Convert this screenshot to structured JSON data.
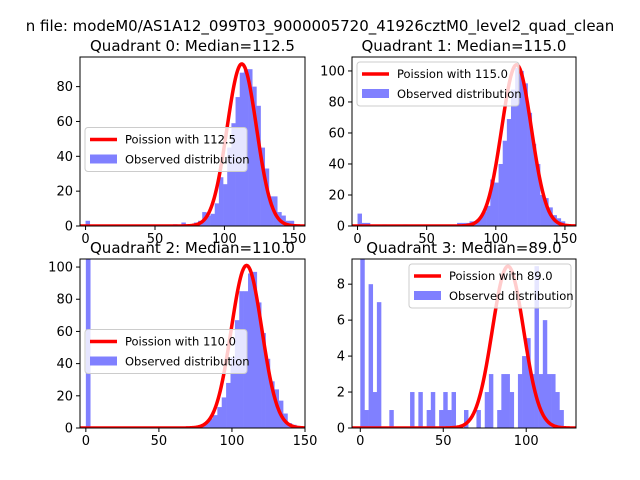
{
  "suptitle": "n file: modeM0/AS1A12_099T03_9000005720_41926cztM0_level2_quad_clean",
  "colors": {
    "poisson": "#ff0000",
    "observed": "#8080ff"
  },
  "legend_labels": {
    "poisson_prefix": "Poission with ",
    "observed": "Observed distribution"
  },
  "chart_data": [
    {
      "type": "bar",
      "title": "Quadrant 0: Median=112.5",
      "xlim": [
        -4,
        158
      ],
      "ylim": [
        0,
        97
      ],
      "xticks": [
        0,
        50,
        100,
        150
      ],
      "yticks": [
        0,
        20,
        40,
        60,
        80
      ],
      "legend_loc": "center-left",
      "poisson_label": "112.5",
      "poisson_mean": 112.5,
      "poisson_peak": 93,
      "bin_width": 3,
      "bins": [
        [
          0,
          3
        ],
        [
          63,
          1
        ],
        [
          69,
          2
        ],
        [
          72,
          1
        ],
        [
          75,
          1
        ],
        [
          78,
          2
        ],
        [
          81,
          3
        ],
        [
          84,
          8
        ],
        [
          87,
          6
        ],
        [
          90,
          7
        ],
        [
          93,
          13
        ],
        [
          96,
          28
        ],
        [
          99,
          24
        ],
        [
          102,
          45
        ],
        [
          105,
          59
        ],
        [
          108,
          74
        ],
        [
          111,
          88
        ],
        [
          114,
          90
        ],
        [
          117,
          90
        ],
        [
          120,
          80
        ],
        [
          123,
          69
        ],
        [
          126,
          45
        ],
        [
          129,
          33
        ],
        [
          132,
          17
        ],
        [
          135,
          17
        ],
        [
          138,
          8
        ],
        [
          141,
          6
        ],
        [
          144,
          3
        ],
        [
          147,
          3
        ],
        [
          150,
          1
        ]
      ]
    },
    {
      "type": "bar",
      "title": "Quadrant 1: Median=115.0",
      "xlim": [
        -4,
        158
      ],
      "ylim": [
        0,
        109
      ],
      "xticks": [
        0,
        50,
        100,
        150
      ],
      "yticks": [
        0,
        20,
        40,
        60,
        80,
        100
      ],
      "legend_loc": "top-left",
      "poisson_label": "115.0",
      "poisson_mean": 115,
      "poisson_peak": 104,
      "bin_width": 3,
      "bins": [
        [
          0,
          8
        ],
        [
          3,
          2
        ],
        [
          6,
          2
        ],
        [
          18,
          1
        ],
        [
          33,
          1
        ],
        [
          72,
          2
        ],
        [
          75,
          2
        ],
        [
          78,
          2
        ],
        [
          81,
          3
        ],
        [
          84,
          3
        ],
        [
          87,
          5
        ],
        [
          90,
          9
        ],
        [
          93,
          13
        ],
        [
          96,
          30
        ],
        [
          99,
          28
        ],
        [
          102,
          40
        ],
        [
          105,
          55
        ],
        [
          108,
          69
        ],
        [
          111,
          88
        ],
        [
          114,
          102
        ],
        [
          117,
          100
        ],
        [
          120,
          92
        ],
        [
          123,
          73
        ],
        [
          126,
          53
        ],
        [
          129,
          40
        ],
        [
          132,
          20
        ],
        [
          135,
          18
        ],
        [
          138,
          12
        ],
        [
          141,
          7
        ],
        [
          144,
          5
        ],
        [
          147,
          3
        ],
        [
          150,
          1
        ]
      ]
    },
    {
      "type": "bar",
      "title": "Quadrant 2: Median=110.0",
      "xlim": [
        -4,
        150
      ],
      "ylim": [
        0,
        105
      ],
      "xticks": [
        0,
        50,
        100,
        150
      ],
      "yticks": [
        0,
        20,
        40,
        60,
        80,
        100
      ],
      "legend_loc": "center-left",
      "poisson_label": "110.0",
      "poisson_mean": 110,
      "poisson_peak": 101,
      "bin_width": 3,
      "bins": [
        [
          0,
          105
        ],
        [
          68,
          1
        ],
        [
          72,
          1
        ],
        [
          78,
          2
        ],
        [
          81,
          3
        ],
        [
          84,
          6
        ],
        [
          87,
          8
        ],
        [
          90,
          13
        ],
        [
          93,
          19
        ],
        [
          96,
          28
        ],
        [
          99,
          44
        ],
        [
          102,
          67
        ],
        [
          105,
          85
        ],
        [
          108,
          85
        ],
        [
          111,
          96
        ],
        [
          114,
          97
        ],
        [
          117,
          78
        ],
        [
          120,
          59
        ],
        [
          123,
          43
        ],
        [
          126,
          29
        ],
        [
          129,
          24
        ],
        [
          132,
          17
        ],
        [
          135,
          9
        ],
        [
          138,
          3
        ],
        [
          141,
          2
        ]
      ]
    },
    {
      "type": "bar",
      "title": "Quadrant 3: Median=89.0",
      "xlim": [
        -5,
        130
      ],
      "ylim": [
        0,
        9.4
      ],
      "xticks": [
        0,
        50,
        100
      ],
      "yticks": [
        0,
        2,
        4,
        6,
        8
      ],
      "legend_loc": "top-right",
      "poisson_label": "89.0",
      "poisson_mean": 89,
      "poisson_peak": 9.0,
      "bin_width": 2.5,
      "bins": [
        [
          0,
          9.4
        ],
        [
          2.5,
          1
        ],
        [
          5,
          8
        ],
        [
          7.5,
          2
        ],
        [
          10,
          7
        ],
        [
          17.5,
          1
        ],
        [
          30,
          2
        ],
        [
          35,
          2
        ],
        [
          40,
          1
        ],
        [
          42.5,
          2
        ],
        [
          47.5,
          1
        ],
        [
          50,
          2
        ],
        [
          52.5,
          1
        ],
        [
          55,
          2
        ],
        [
          62.5,
          1
        ],
        [
          70,
          1
        ],
        [
          75,
          2
        ],
        [
          77.5,
          3
        ],
        [
          82.5,
          1
        ],
        [
          85,
          3
        ],
        [
          87.5,
          3
        ],
        [
          90,
          2
        ],
        [
          95,
          3
        ],
        [
          97.5,
          4
        ],
        [
          100,
          5
        ],
        [
          102.5,
          3
        ],
        [
          105,
          9
        ],
        [
          107.5,
          3
        ],
        [
          110,
          6
        ],
        [
          112.5,
          3
        ],
        [
          115,
          3
        ],
        [
          117.5,
          2
        ],
        [
          120,
          1
        ]
      ]
    }
  ]
}
